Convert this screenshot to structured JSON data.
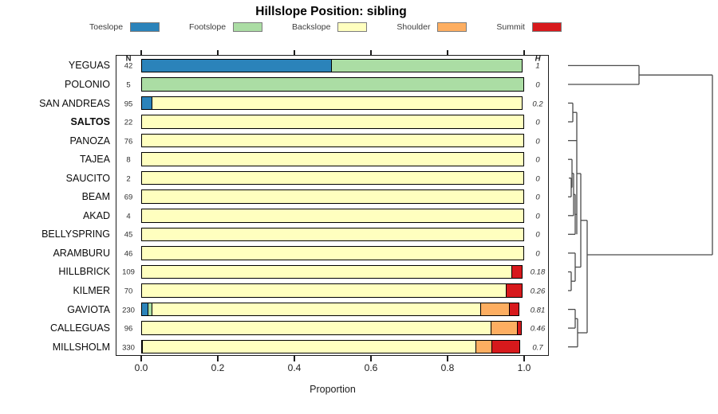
{
  "title": "Hillslope Position: sibling",
  "legend": [
    {
      "label": "Toeslope",
      "color": "#2B83BA"
    },
    {
      "label": "Footslope",
      "color": "#ABDDA4"
    },
    {
      "label": "Backslope",
      "color": "#FFFFBF"
    },
    {
      "label": "Shoulder",
      "color": "#FDAE61"
    },
    {
      "label": "Summit",
      "color": "#D7191C"
    }
  ],
  "columns": {
    "n_header": "N",
    "h_header": "H"
  },
  "axis": {
    "label": "Proportion",
    "tick_labels": [
      "0.0",
      "0.2",
      "0.4",
      "0.6",
      "0.8",
      "1.0"
    ],
    "tick_values": [
      0,
      0.2,
      0.4,
      0.6,
      0.8,
      1.0
    ]
  },
  "chart_data": {
    "type": "bar",
    "stacked": true,
    "orientation": "horizontal",
    "title": "Hillslope Position: sibling",
    "xlabel": "Proportion",
    "xlim": [
      0,
      1
    ],
    "categories": [
      "Toeslope",
      "Footslope",
      "Backslope",
      "Shoulder",
      "Summit"
    ],
    "colors": [
      "#2B83BA",
      "#ABDDA4",
      "#FFFFBF",
      "#FDAE61",
      "#D7191C"
    ],
    "rows": [
      {
        "label": "YEGUAS",
        "n": 42,
        "h": "1",
        "bold": false,
        "values": [
          0.5,
          0.5,
          0,
          0,
          0
        ]
      },
      {
        "label": "POLONIO",
        "n": 5,
        "h": "0",
        "bold": false,
        "values": [
          0,
          1.0,
          0,
          0,
          0
        ]
      },
      {
        "label": "SAN ANDREAS",
        "n": 95,
        "h": "0.2",
        "bold": false,
        "values": [
          0.03,
          0,
          0.97,
          0,
          0
        ]
      },
      {
        "label": "SALTOS",
        "n": 22,
        "h": "0",
        "bold": true,
        "values": [
          0,
          0,
          1.0,
          0,
          0
        ]
      },
      {
        "label": "PANOZA",
        "n": 76,
        "h": "0",
        "bold": false,
        "values": [
          0,
          0,
          1.0,
          0,
          0
        ]
      },
      {
        "label": "TAJEA",
        "n": 8,
        "h": "0",
        "bold": false,
        "values": [
          0,
          0,
          1.0,
          0,
          0
        ]
      },
      {
        "label": "SAUCITO",
        "n": 2,
        "h": "0",
        "bold": false,
        "values": [
          0,
          0,
          1.0,
          0,
          0
        ]
      },
      {
        "label": "BEAM",
        "n": 69,
        "h": "0",
        "bold": false,
        "values": [
          0,
          0,
          1.0,
          0,
          0
        ]
      },
      {
        "label": "AKAD",
        "n": 4,
        "h": "0",
        "bold": false,
        "values": [
          0,
          0,
          1.0,
          0,
          0
        ]
      },
      {
        "label": "BELLYSPRING",
        "n": 45,
        "h": "0",
        "bold": false,
        "values": [
          0,
          0,
          1.0,
          0,
          0
        ]
      },
      {
        "label": "ARAMBURU",
        "n": 46,
        "h": "0",
        "bold": false,
        "values": [
          0,
          0,
          1.0,
          0,
          0
        ]
      },
      {
        "label": "HILLBRICK",
        "n": 109,
        "h": "0.18",
        "bold": false,
        "values": [
          0,
          0,
          0.97,
          0,
          0.03
        ]
      },
      {
        "label": "KILMER",
        "n": 70,
        "h": "0.26",
        "bold": false,
        "values": [
          0,
          0,
          0.955,
          0,
          0.045
        ]
      },
      {
        "label": "GAVIOTA",
        "n": 230,
        "h": "0.81",
        "bold": false,
        "values": [
          0.02,
          0.013,
          0.862,
          0.078,
          0.027
        ]
      },
      {
        "label": "CALLEGUAS",
        "n": 96,
        "h": "0.46",
        "bold": false,
        "values": [
          0,
          0,
          0.915,
          0.073,
          0.012
        ]
      },
      {
        "label": "MILLSHOLM",
        "n": 330,
        "h": "0.7",
        "bold": false,
        "values": [
          0,
          0.006,
          0.873,
          0.046,
          0.075
        ]
      }
    ],
    "dendrogram_segments": [
      [
        712,
        82.4,
        801,
        82.4
      ],
      [
        712,
        106,
        801,
        106
      ],
      [
        801,
        82.4,
        801,
        106
      ],
      [
        801,
        94.2,
        893,
        94.2
      ],
      [
        893,
        94.2,
        893,
        320
      ],
      [
        736,
        320,
        893,
        320
      ],
      [
        712,
        129.5,
        718,
        129.5
      ],
      [
        712,
        153,
        718,
        153
      ],
      [
        718,
        129.5,
        718,
        153
      ],
      [
        718,
        141.2,
        723,
        141.2
      ],
      [
        712,
        176.6,
        723,
        176.6
      ],
      [
        723,
        141.2,
        723,
        294.3
      ],
      [
        712,
        200.2,
        717,
        200.2
      ],
      [
        713,
        223.7,
        716,
        223.7
      ],
      [
        712,
        247.2,
        716,
        247.2
      ],
      [
        716,
        223.7,
        716,
        247.2
      ],
      [
        716,
        235.5,
        717,
        235.5
      ],
      [
        717,
        200.2,
        717,
        235.5
      ],
      [
        717,
        217.8,
        719,
        217.8
      ],
      [
        712,
        270.8,
        719,
        270.8
      ],
      [
        719,
        217.8,
        719,
        270.8
      ],
      [
        719,
        244.3,
        721,
        244.3
      ],
      [
        712,
        294.3,
        721,
        294.3
      ],
      [
        721,
        244.3,
        721,
        294.3
      ],
      [
        721,
        269.3,
        723,
        269.3
      ],
      [
        723,
        218,
        728,
        218
      ],
      [
        712,
        317.9,
        721,
        317.9
      ],
      [
        712,
        341.5,
        716,
        341.5
      ],
      [
        712,
        365,
        716,
        365
      ],
      [
        716,
        341.5,
        716,
        365
      ],
      [
        716,
        353.2,
        721,
        353.2
      ],
      [
        721,
        317.9,
        721,
        353.2
      ],
      [
        721,
        335.5,
        728,
        335.5
      ],
      [
        728,
        218,
        728,
        335.5
      ],
      [
        728,
        276.8,
        736,
        276.8
      ],
      [
        712,
        388.6,
        721,
        388.6
      ],
      [
        712,
        412.1,
        721,
        412.1
      ],
      [
        721,
        388.6,
        721,
        412.1
      ],
      [
        721,
        400.3,
        724,
        400.3
      ],
      [
        712,
        435.7,
        724,
        435.7
      ],
      [
        724,
        400.3,
        724,
        435.7
      ],
      [
        724,
        418,
        736,
        418
      ],
      [
        736,
        276.8,
        736,
        418
      ]
    ]
  }
}
